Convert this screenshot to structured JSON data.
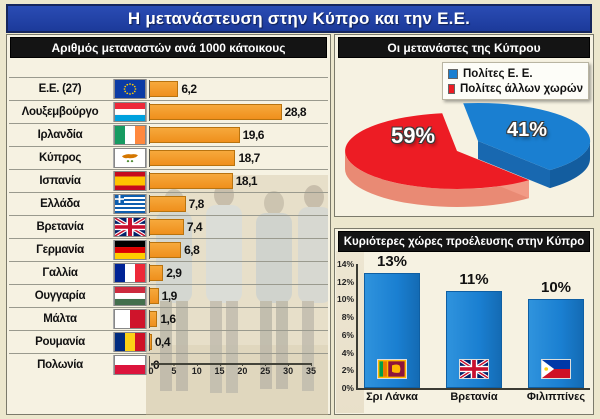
{
  "page_title": "Η μετανάστευση στην Κύπρο και την Ε.Ε.",
  "colors": {
    "title_bar": "#1e3fa3",
    "header_bar": "#141414",
    "orange_bar": "#f09223",
    "blue": "#1a7fd1",
    "red": "#ed1c24",
    "page_background": "#ece7cd"
  },
  "chart_data": [
    {
      "type": "bar",
      "orientation": "horizontal",
      "title": "Αριθμός μεταναστών ανά 1000 κάτοικους",
      "categories": [
        "Ε.Ε. (27)",
        "Λουξεμβούργο",
        "Ιρλανδία",
        "Κύπρος",
        "Ισπανία",
        "Ελλάδα",
        "Βρετανία",
        "Γερμανία",
        "Γαλλία",
        "Ουγγαρία",
        "Μάλτα",
        "Ρουμανία",
        "Πολωνία"
      ],
      "values": [
        6.2,
        28.8,
        19.6,
        18.7,
        18.1,
        7.8,
        7.4,
        6.8,
        2.9,
        1.9,
        1.6,
        0.4,
        0
      ],
      "value_labels": [
        "6,2",
        "28,8",
        "19,6",
        "18,7",
        "18,1",
        "7,8",
        "7,4",
        "6,8",
        "2,9",
        "1,9",
        "1,6",
        "0,4",
        "0"
      ],
      "flags": [
        "eu",
        "luxembourg",
        "ireland",
        "cyprus",
        "spain",
        "greece",
        "uk",
        "germany",
        "france",
        "hungary",
        "malta",
        "romania",
        "poland"
      ],
      "xlim": [
        0,
        35
      ],
      "x_ticks": [
        "0",
        "5",
        "10",
        "15",
        "20",
        "25",
        "30",
        "35"
      ],
      "bar_color": "#f09223"
    },
    {
      "type": "pie",
      "title": "Οι μετανάστες της Κύπρου",
      "labels": [
        "Πολίτες Ε. Ε.",
        "Πολίτες άλλων χωρών"
      ],
      "values": [
        41,
        59
      ],
      "value_labels": [
        "41%",
        "59%"
      ],
      "colors": [
        "#1a7fd1",
        "#ed1c24"
      ],
      "legend_position": "top-right",
      "style": "3d-exploded"
    },
    {
      "type": "bar",
      "orientation": "vertical",
      "title": "Κυριότερες χώρες προέλευσης στην Κύπρο",
      "categories": [
        "Σρι Λάνκα",
        "Βρετανία",
        "Φιλιππίνες"
      ],
      "values": [
        13,
        11,
        10
      ],
      "value_labels": [
        "13%",
        "11%",
        "10%"
      ],
      "flags": [
        "srilanka",
        "uk",
        "philippines"
      ],
      "ylim": [
        0,
        14
      ],
      "y_ticks": [
        "14%",
        "12%",
        "10%",
        "8%",
        "6%",
        "4%",
        "2%",
        "0%"
      ],
      "bar_color": "#1a7fd1"
    }
  ]
}
